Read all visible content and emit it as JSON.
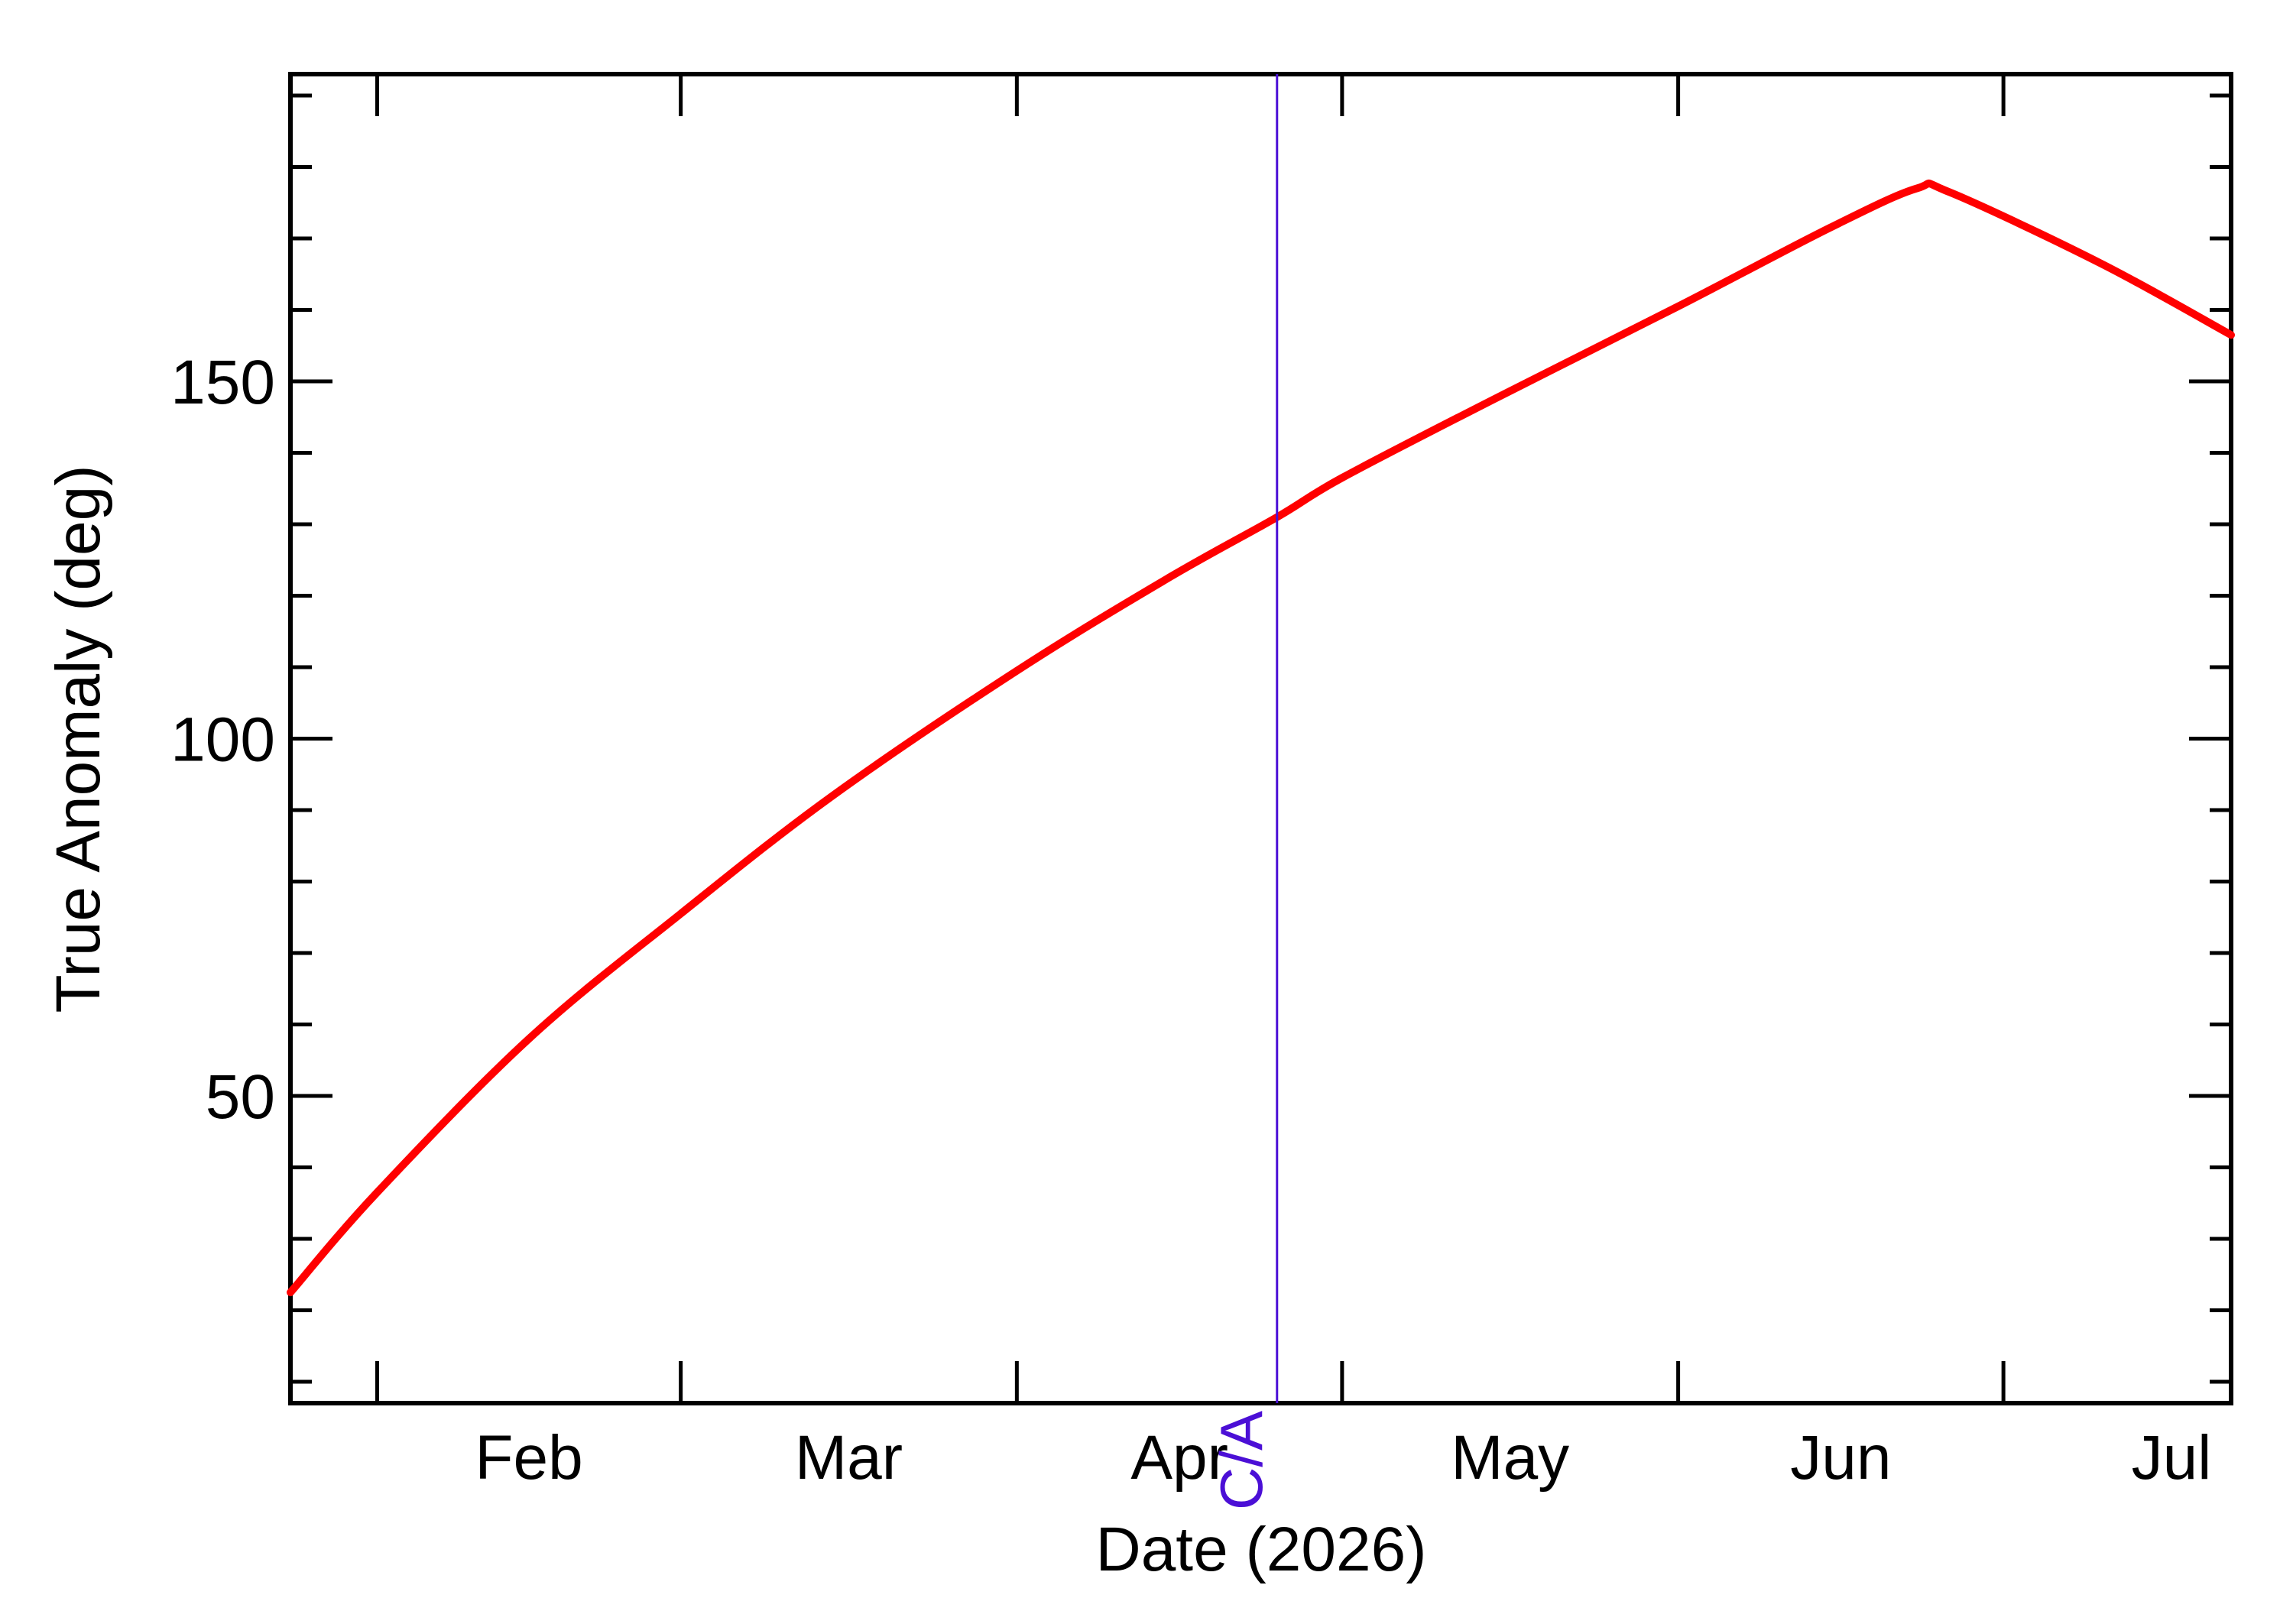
{
  "chart_data": {
    "type": "line",
    "title": "",
    "xlabel": "Date (2026)",
    "ylabel": "True Anomaly (deg)",
    "x_axis": {
      "type": "date",
      "range": [
        "2026-01-24",
        "2026-07-22"
      ],
      "major_ticks": [
        "2026-02-01",
        "2026-03-01",
        "2026-04-01",
        "2026-05-01",
        "2026-06-01",
        "2026-07-01"
      ],
      "month_labels": [
        "Feb",
        "Mar",
        "Apr",
        "May",
        "Jun",
        "Jul"
      ]
    },
    "y_axis": {
      "range": [
        7,
        193
      ],
      "major_ticks": [
        50,
        100,
        150
      ],
      "minor_step": 10
    },
    "grid": false,
    "series": [
      {
        "color": "#ff0000",
        "points": [
          [
            "2026-01-24",
            22.5
          ],
          [
            "2026-02-01",
            36.5
          ],
          [
            "2026-02-15",
            58.0
          ],
          [
            "2026-03-01",
            75.5
          ],
          [
            "2026-03-15",
            92.0
          ],
          [
            "2026-04-01",
            109.5
          ],
          [
            "2026-04-15",
            122.5
          ],
          [
            "2026-04-25",
            131.0
          ],
          [
            "2026-05-01",
            136.5
          ],
          [
            "2026-05-15",
            147.5
          ],
          [
            "2026-06-01",
            160.5
          ],
          [
            "2026-06-15",
            171.5
          ],
          [
            "2026-06-23",
            177.0
          ],
          [
            "2026-06-26",
            176.5
          ],
          [
            "2026-07-10",
            166.5
          ],
          [
            "2026-07-22",
            156.5
          ]
        ]
      }
    ],
    "annotations": [
      {
        "label": "C/A",
        "x": "2026-04-25",
        "color": "#4b0fd6"
      }
    ]
  }
}
